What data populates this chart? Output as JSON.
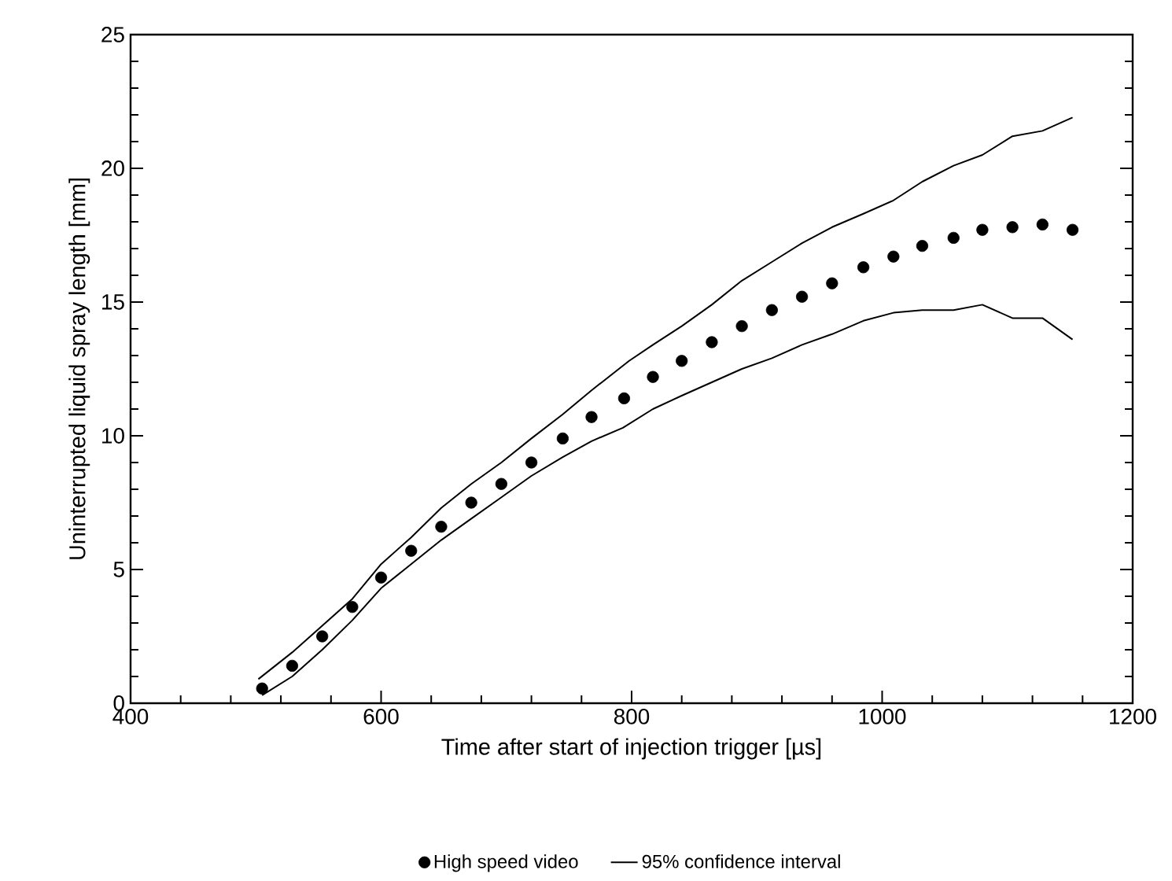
{
  "chart_data": {
    "type": "line",
    "xlabel": "Time after start of injection trigger [µs]",
    "ylabel": "Uninterrupted liquid spray length [mm]",
    "xlim": [
      400,
      1200
    ],
    "xticks": [
      400,
      600,
      800,
      1000,
      1200
    ],
    "ylim": [
      0,
      25
    ],
    "yticks": [
      0,
      5,
      10,
      15,
      20,
      25
    ],
    "grid": false,
    "legend": "bottom",
    "series": [
      {
        "name": "High speed video",
        "type": "scatter",
        "marker": "circle",
        "color": "#000000",
        "x": [
          505,
          529,
          553,
          577,
          600,
          624,
          648,
          672,
          696,
          720,
          745,
          768,
          794,
          817,
          840,
          864,
          888,
          912,
          936,
          960,
          985,
          1009,
          1032,
          1057,
          1080,
          1104,
          1128,
          1152
        ],
        "values": [
          0.55,
          1.4,
          2.5,
          3.6,
          4.7,
          5.7,
          6.6,
          7.5,
          8.2,
          9.0,
          9.9,
          10.7,
          11.4,
          12.2,
          12.8,
          13.5,
          14.1,
          14.7,
          15.2,
          15.7,
          16.3,
          16.7,
          17.1,
          17.4,
          17.7,
          17.8,
          17.9,
          17.7
        ]
      },
      {
        "name": "95% confidence interval",
        "marker": "none",
        "color": "#000000",
        "x": [
          502,
          529,
          553,
          577,
          600,
          624,
          648,
          672,
          696,
          720,
          745,
          768,
          798,
          817,
          840,
          864,
          888,
          912,
          936,
          960,
          985,
          1009,
          1032,
          1057,
          1080,
          1104,
          1128,
          1152
        ],
        "values": [
          0.9,
          1.9,
          2.9,
          3.9,
          5.2,
          6.2,
          7.3,
          8.2,
          9.0,
          9.9,
          10.8,
          11.7,
          12.8,
          13.4,
          14.1,
          14.9,
          15.8,
          16.5,
          17.2,
          17.8,
          18.3,
          18.8,
          19.5,
          20.1,
          20.5,
          21.2,
          21.4,
          21.9
        ]
      },
      {
        "marker": "none",
        "color": "#000000",
        "x": [
          505,
          529,
          553,
          577,
          600,
          624,
          648,
          672,
          696,
          720,
          745,
          768,
          793,
          817,
          840,
          864,
          888,
          912,
          936,
          960,
          985,
          1009,
          1032,
          1057,
          1080,
          1104,
          1128,
          1152
        ],
        "values": [
          0.3,
          1.0,
          2.0,
          3.1,
          4.3,
          5.2,
          6.1,
          6.9,
          7.7,
          8.5,
          9.2,
          9.8,
          10.3,
          11.0,
          11.5,
          12.0,
          12.5,
          12.9,
          13.4,
          13.8,
          14.3,
          14.6,
          14.7,
          14.7,
          14.9,
          14.4,
          14.4,
          13.6
        ]
      }
    ]
  }
}
